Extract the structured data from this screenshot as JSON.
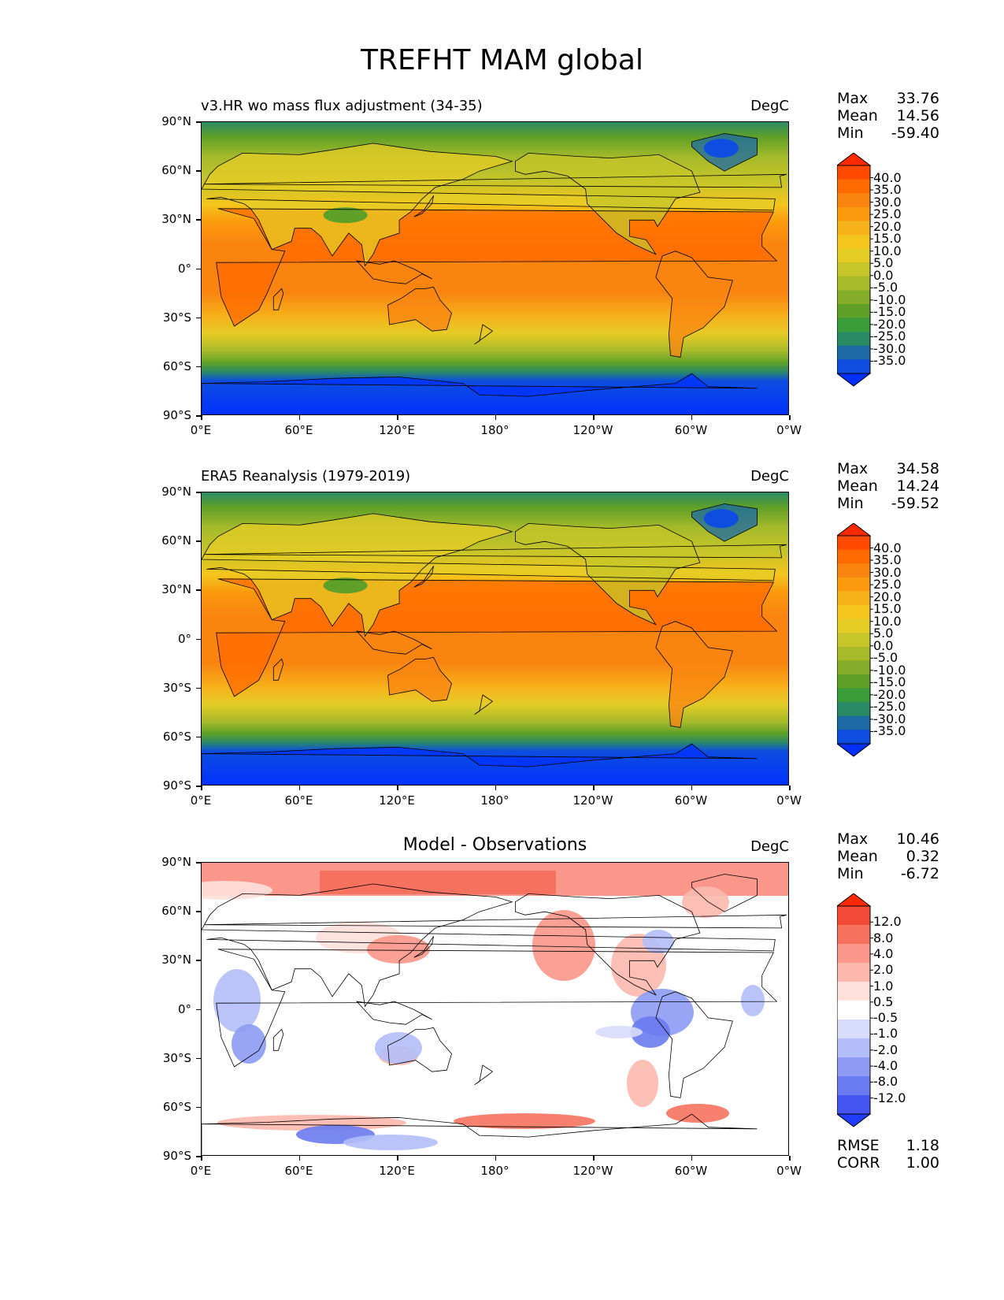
{
  "figure": {
    "title": "TREFHT MAM global"
  },
  "axes": {
    "lat_ticks": [
      "90°N",
      "60°N",
      "30°N",
      "0°",
      "30°S",
      "60°S",
      "90°S"
    ],
    "lon_ticks": [
      "0°E",
      "60°E",
      "120°E",
      "180°",
      "120°W",
      "60°W",
      "0°W"
    ]
  },
  "panels": [
    {
      "left_title": "v3.HR wo mass flux adjustment (34-35)",
      "center_title": "",
      "units": "DegC",
      "stats": {
        "max_label": "Max",
        "max": "33.76",
        "mean_label": "Mean",
        "mean": "14.56",
        "min_label": "Min",
        "min": "-59.40"
      },
      "cbar_kind": "temp"
    },
    {
      "left_title": "ERA5 Reanalysis (1979-2019)",
      "center_title": "",
      "units": "DegC",
      "stats": {
        "max_label": "Max",
        "max": "34.58",
        "mean_label": "Mean",
        "mean": "14.24",
        "min_label": "Min",
        "min": "-59.52"
      },
      "cbar_kind": "temp"
    },
    {
      "left_title": "",
      "center_title": "Model - Observations",
      "units": "DegC",
      "stats": {
        "max_label": "Max",
        "max": "10.46",
        "mean_label": "Mean",
        "mean": "0.32",
        "min_label": "Min",
        "min": "-6.72"
      },
      "extra": {
        "rmse_label": "RMSE",
        "rmse": "1.18",
        "corr_label": "CORR",
        "corr": "1.00"
      },
      "cbar_kind": "diff"
    }
  ],
  "colorbars": {
    "temp": {
      "labels": [
        "40.0",
        "35.0",
        "30.0",
        "25.0",
        "20.0",
        "15.0",
        "10.0",
        "5.0",
        "0.0",
        "-5.0",
        "-10.0",
        "-15.0",
        "-20.0",
        "-25.0",
        "-30.0",
        "-35.0"
      ],
      "colors": [
        "#ff2a00",
        "#ff4a00",
        "#ff6a00",
        "#f98410",
        "#fb9a0c",
        "#f7b119",
        "#f3c51d",
        "#e5cc25",
        "#c6c52a",
        "#a6ba2a",
        "#86ad2a",
        "#5fa028",
        "#3b9c3a",
        "#2a8a66",
        "#1c6aa6",
        "#0d4ee0",
        "#0030ff"
      ]
    },
    "diff": {
      "labels": [
        "12.0",
        "8.0",
        "4.0",
        "2.0",
        "1.0",
        "0.5",
        "-0.5",
        "-1.0",
        "-2.0",
        "-4.0",
        "-8.0",
        "-12.0"
      ],
      "colors": [
        "#ff2a00",
        "#f24a36",
        "#f6725e",
        "#fa968a",
        "#fcb8ad",
        "#fde0da",
        "#ffffff",
        "#d7dcfb",
        "#b3bef8",
        "#8d9bf4",
        "#6a7af0",
        "#4655ef",
        "#1f3cff"
      ]
    }
  }
}
